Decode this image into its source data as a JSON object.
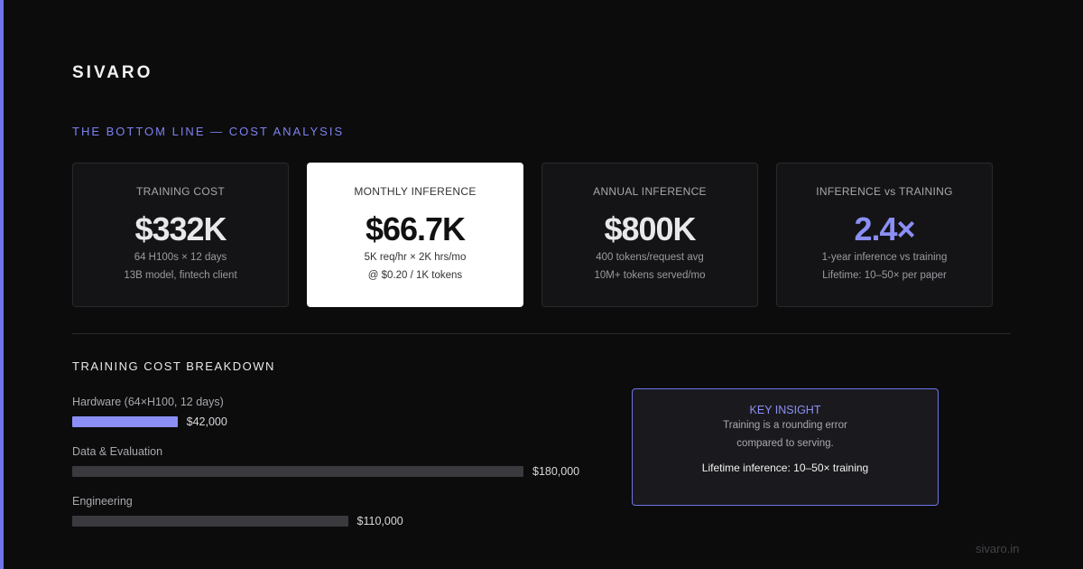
{
  "header": {
    "logo": "SIVARO",
    "subtitle": "THE BOTTOM LINE — COST ANALYSIS"
  },
  "cards": [
    {
      "label": "TRAINING COST",
      "value": "$332K",
      "lines": [
        "64 H100s × 12 days",
        "13B model, fintech client"
      ]
    },
    {
      "label": "MONTHLY INFERENCE",
      "value": "$66.7K",
      "lines": [
        "5K req/hr × 2K hrs/mo",
        "@ $0.20 / 1K tokens"
      ]
    },
    {
      "label": "ANNUAL INFERENCE",
      "value": "$800K",
      "lines": [
        "400 tokens/request avg",
        "10M+ tokens served/mo"
      ]
    },
    {
      "label": "INFERENCE vs TRAINING",
      "value": "2.4×",
      "lines": [
        "1-year inference vs training",
        "Lifetime: 10–50× per paper"
      ]
    }
  ],
  "breakdown": {
    "title": "TRAINING COST BREAKDOWN",
    "categories": [
      "Hardware (64×H100, 12 days)",
      "Data & Evaluation",
      "Engineering"
    ],
    "values": [
      42000,
      180000,
      110000
    ],
    "value_labels": [
      "$42,000",
      "$180,000",
      "$110,000"
    ],
    "colors": [
      "#8b8ff5",
      "#3a3a3e",
      "#3a3a3e"
    ]
  },
  "insight": {
    "title": "KEY INSIGHT",
    "lines": [
      "Training is a rounding error",
      "compared to serving."
    ],
    "emphasis": "Lifetime inference: 10–50× training"
  },
  "footer": "sivaro.in"
}
